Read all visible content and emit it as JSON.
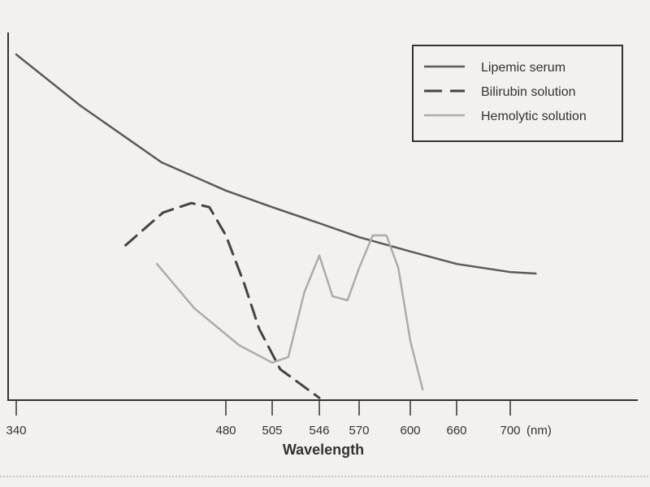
{
  "chart_data": {
    "type": "line",
    "title": "",
    "xlabel": "Wavelength",
    "ylabel": "",
    "x_unit": "(nm)",
    "x_ticks": [
      340,
      480,
      505,
      546,
      570,
      600,
      660,
      700
    ],
    "x_ticks_labels": [
      "340",
      "480",
      "505",
      "546",
      "570",
      "600",
      "660",
      "700"
    ],
    "x_scale": "non-uniform (ticks at listed wavelengths)",
    "y_ticks": [],
    "y_units": "relative absorbance (unlabeled)",
    "ylim": [
      0,
      1
    ],
    "grid": false,
    "legend_position": "top-right",
    "series": [
      {
        "name": "Lipemic serum",
        "style": "solid",
        "color": "#5a5a5a",
        "x": [
          340,
          383,
          437,
          480,
          505,
          546,
          570,
          600,
          660,
          700,
          719
        ],
        "y": [
          0.94,
          0.8,
          0.646,
          0.569,
          0.524,
          0.48,
          0.442,
          0.403,
          0.369,
          0.347,
          0.343
        ]
      },
      {
        "name": "Bilirubin solution",
        "style": "dashed",
        "color": "#444444",
        "x": [
          413,
          438,
          457,
          469,
          480,
          490,
          498,
          512,
          546
        ],
        "y": [
          0.42,
          0.509,
          0.535,
          0.524,
          0.447,
          0.314,
          0.192,
          0.082,
          0.004
        ]
      },
      {
        "name": "Hemolytic solution",
        "style": "solid",
        "color": "#acacac",
        "x": [
          434,
          459,
          487,
          505,
          519,
          533,
          546,
          554,
          563,
          570,
          578,
          586,
          593,
          600,
          616
        ],
        "y": [
          0.369,
          0.248,
          0.148,
          0.1,
          0.115,
          0.292,
          0.392,
          0.281,
          0.27,
          0.358,
          0.447,
          0.447,
          0.358,
          0.159,
          0.027
        ]
      }
    ]
  }
}
